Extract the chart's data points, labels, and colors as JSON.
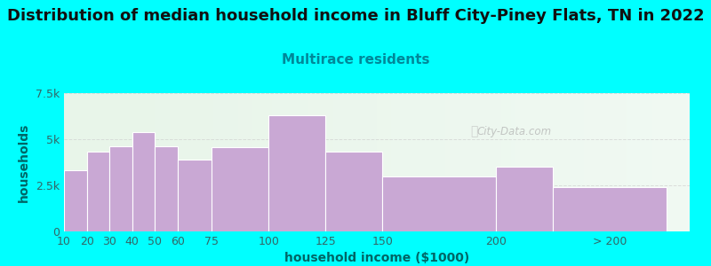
{
  "title": "Distribution of median household income in Bluff City-Piney Flats, TN in 2022",
  "subtitle": "Multirace residents",
  "xlabel": "household income ($1000)",
  "ylabel": "households",
  "background_color": "#00FFFF",
  "bar_color": "#C9A8D4",
  "bar_edge_color": "#ffffff",
  "bar_lefts": [
    10,
    20,
    30,
    40,
    50,
    60,
    75,
    100,
    125,
    150,
    200,
    225
  ],
  "bar_widths": [
    10,
    10,
    10,
    10,
    10,
    15,
    25,
    25,
    25,
    50,
    25,
    50
  ],
  "values": [
    3300,
    4350,
    4600,
    5400,
    4600,
    3900,
    4550,
    6300,
    4350,
    3000,
    3500,
    2400
  ],
  "xticks": [
    10,
    20,
    30,
    40,
    50,
    60,
    75,
    100,
    125,
    150,
    200
  ],
  "xticklabels": [
    "10",
    "20",
    "30",
    "40",
    "50",
    "60",
    "75",
    "100",
    "125",
    "150",
    "200"
  ],
  "extra_xtick": 250,
  "extra_xticklabel": "> 200",
  "xlim": [
    10,
    285
  ],
  "ylim": [
    0,
    7500
  ],
  "yticks": [
    0,
    2500,
    5000,
    7500
  ],
  "yticklabels": [
    "0",
    "2.5k",
    "5k",
    "7.5k"
  ],
  "title_fontsize": 13,
  "subtitle_fontsize": 11,
  "axis_label_fontsize": 10,
  "tick_fontsize": 9,
  "title_color": "#111111",
  "subtitle_color": "#008899",
  "axis_label_color": "#006666",
  "tick_color": "#336666",
  "watermark": "City-Data.com",
  "plot_bg_left_color": "#e8f5e9",
  "plot_bg_right_color": "#f8fff8"
}
